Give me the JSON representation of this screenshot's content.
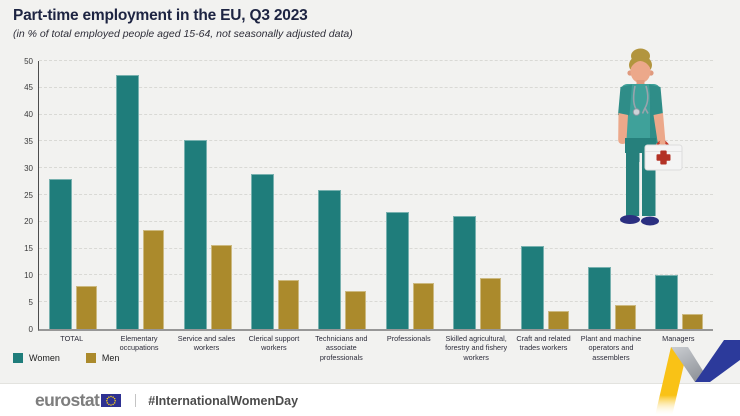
{
  "header": {
    "title": "Part-time employment in the EU, Q3 2023",
    "subtitle": "(in % of total employed people aged 15-64, not seasonally adjusted data)"
  },
  "chart_data": {
    "type": "bar",
    "categories": [
      "TOTAL",
      "Elementary occupations",
      "Service and sales workers",
      "Clerical support workers",
      "Technicians and associate professionals",
      "Professionals",
      "Skilled agricultural, forestry and fishery workers",
      "Craft and related trades workers",
      "Plant and machine operators and assemblers",
      "Managers"
    ],
    "series": [
      {
        "name": "Women",
        "color": "#1f7d7b",
        "values": [
          28,
          47.3,
          35.2,
          28.9,
          26,
          21.9,
          21.1,
          15.5,
          11.6,
          10
        ]
      },
      {
        "name": "Men",
        "color": "#ab8a2c",
        "values": [
          8,
          18.5,
          15.6,
          9.1,
          7.1,
          8.6,
          9.6,
          3.4,
          4.4,
          2.8
        ]
      }
    ],
    "title": "Part-time employment in the EU, Q3 2023",
    "xlabel": "",
    "ylabel": "",
    "ylim": [
      0,
      50
    ],
    "ytick_step": 5,
    "grid": "horizontal-dashed",
    "legend_position": "bottom-left"
  },
  "legend": {
    "items": [
      {
        "label": "Women",
        "color": "#1f7d7b"
      },
      {
        "label": "Men",
        "color": "#ab8a2c"
      }
    ]
  },
  "footer": {
    "logo_text": "eurostat",
    "hashtag": "#InternationalWomenDay"
  },
  "illustration": {
    "description": "nurse holding a first-aid kit"
  },
  "colors": {
    "background": "#f2f2f0",
    "footer_background": "#ffffff",
    "title_text": "#1d2442",
    "women": "#1f7d7b",
    "men": "#ab8a2c",
    "ribbon_yellow": "#f9c216",
    "ribbon_blue": "#2c3a9b",
    "eu_flag_blue": "#2e3192"
  }
}
